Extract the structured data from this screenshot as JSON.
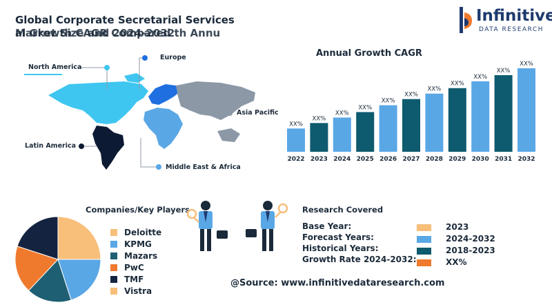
{
  "header": {
    "title_line1": "Global Corporate Secretarial Services",
    "title_line2_a": "Market Size and 2024-2032",
    "title_line2_b": "al Growth CAGR Compared th Annu"
  },
  "logo": {
    "name": "Infinitive",
    "subtitle": "DATA RESEARCH"
  },
  "map": {
    "regions": [
      {
        "label": "North America",
        "color": "#3ec6f0"
      },
      {
        "label": "Europe",
        "color": "#1f6fe0"
      },
      {
        "label": "Asia Pacific",
        "color": "#8c98a6"
      },
      {
        "label": "Latin America",
        "color": "#0d1a33"
      },
      {
        "label": "Middle East & Africa",
        "color": "#5aa7e6"
      }
    ]
  },
  "chart_data": {
    "type": "bar",
    "title": "Annual Growth CAGR",
    "categories": [
      "2022",
      "2023",
      "2024",
      "2025",
      "2026",
      "2027",
      "2028",
      "2029",
      "2030",
      "2031",
      "2032"
    ],
    "values": [
      34,
      42,
      50,
      58,
      68,
      77,
      85,
      93,
      103,
      112,
      122
    ],
    "data_labels": [
      "XX%",
      "XX%",
      "XX%",
      "XX%",
      "XX%",
      "XX%",
      "XX%",
      "XX%",
      "XX%",
      "XX%",
      "XX%"
    ],
    "colors": [
      "#5aa7e6",
      "#0e5a6e",
      "#5aa7e6",
      "#0e5a6e",
      "#5aa7e6",
      "#0e5a6e",
      "#5aa7e6",
      "#0e5a6e",
      "#5aa7e6",
      "#0e5a6e",
      "#5aa7e6"
    ],
    "ylim": [
      0,
      125
    ],
    "xlabel": "",
    "ylabel": ""
  },
  "players": {
    "title": "Companies/Key Players",
    "items": [
      {
        "label": "Deloitte",
        "color": "#f7bf7a",
        "share": 25
      },
      {
        "label": "KPMG",
        "color": "#5aa7e6",
        "share": 20
      },
      {
        "label": "Mazars",
        "color": "#1e5f73",
        "share": 17
      },
      {
        "label": "PwC",
        "color": "#ef7a2e",
        "share": 18
      },
      {
        "label": "TMF",
        "color": "#14233f",
        "share": 20
      },
      {
        "label": "Vistra",
        "color": "#f7bf7a",
        "share": 0
      }
    ]
  },
  "research": {
    "title": "Research Covered",
    "rows": [
      {
        "label": "Base Year:",
        "value": "2023",
        "color": "#f7bf7a"
      },
      {
        "label": "Forecast Years:",
        "value": "2024-2032",
        "color": "#5aa7e6"
      },
      {
        "label": "Historical Years:",
        "value": "2018-2023",
        "color": "#0e5a6e"
      },
      {
        "label": "Growth Rate 2024-2032:",
        "value": "XX%",
        "color": "#ef7a2e"
      }
    ]
  },
  "source": "@Source: www.infinitivedataresearch.com"
}
